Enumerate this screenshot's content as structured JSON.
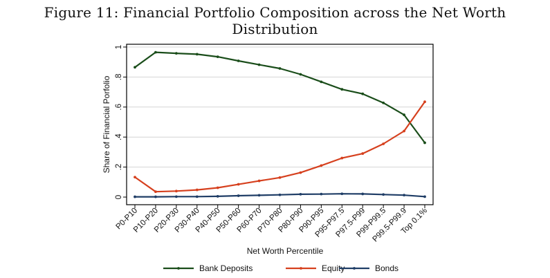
{
  "figure": {
    "title": "Figure 11: Financial Portfolio Composition across the Net Worth Distribution"
  },
  "chart_data": {
    "type": "line",
    "title": "",
    "xlabel": "Net Worth Percentile",
    "ylabel": "Share of Financial Porfolio",
    "categories": [
      "P0-P10",
      "P10-P20",
      "P20-P30",
      "P30-P40",
      "P40-P50",
      "P50-P60",
      "P60-P70",
      "P70-P80",
      "P80-P90",
      "P90-P95",
      "P95-P97.5",
      "P97.5-P99",
      "P99-P99.5",
      "P99.5-P99.9",
      "Top 0.1%"
    ],
    "yticks": [
      0,
      0.2,
      0.4,
      0.6,
      0.8,
      1
    ],
    "ytick_labels": [
      "0",
      ".2",
      ".4",
      ".6",
      ".8",
      "1"
    ],
    "ylim": [
      0,
      1
    ],
    "grid": true,
    "legend_position": "bottom",
    "series": [
      {
        "name": "Bank Deposits",
        "color": "#1a4d1a",
        "values": [
          0.865,
          0.965,
          0.958,
          0.952,
          0.935,
          0.908,
          0.882,
          0.857,
          0.818,
          0.768,
          0.718,
          0.688,
          0.628,
          0.548,
          0.362
        ]
      },
      {
        "name": "Equity",
        "color": "#d6401e",
        "values": [
          0.133,
          0.036,
          0.04,
          0.048,
          0.062,
          0.085,
          0.108,
          0.13,
          0.163,
          0.21,
          0.26,
          0.29,
          0.355,
          0.44,
          0.635
        ]
      },
      {
        "name": "Bonds",
        "color": "#1f3d66",
        "values": [
          0.002,
          0.002,
          0.003,
          0.003,
          0.005,
          0.009,
          0.012,
          0.015,
          0.019,
          0.02,
          0.022,
          0.021,
          0.017,
          0.013,
          0.003
        ]
      }
    ]
  }
}
